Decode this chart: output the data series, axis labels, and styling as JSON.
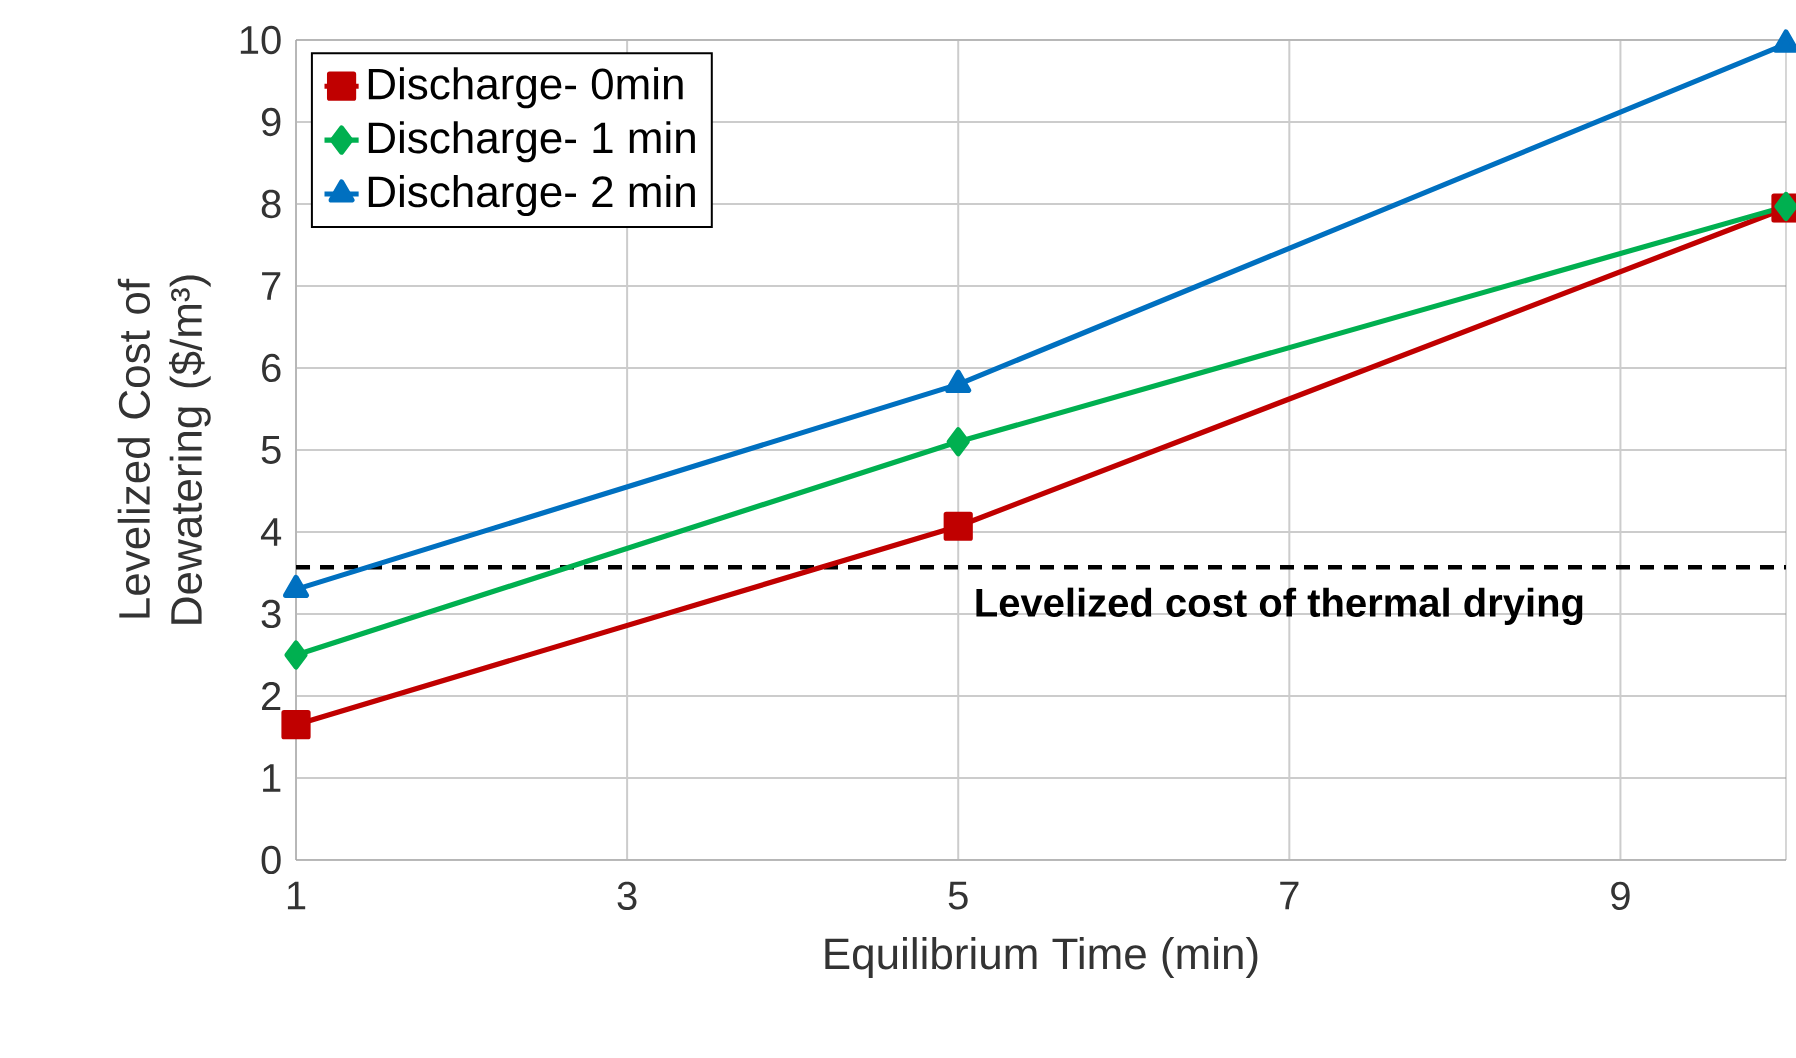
{
  "chart_data": {
    "type": "line",
    "xlabel": "Equilibrium Time (min)",
    "ylabel": "Levelized Cost of Dewatering ($/m³)",
    "x": [
      1,
      5,
      10
    ],
    "series": [
      {
        "name": "Discharge- 0min",
        "color": "#c00000",
        "marker": "square",
        "values": [
          1.65,
          4.07,
          7.95
        ]
      },
      {
        "name": "Discharge- 1 min",
        "color": "#00b050",
        "marker": "diamond",
        "values": [
          2.5,
          5.1,
          7.97
        ]
      },
      {
        "name": "Discharge- 2 min",
        "color": "#0070c0",
        "marker": "triangle",
        "values": [
          3.3,
          5.8,
          9.95
        ]
      }
    ],
    "xlim": [
      1,
      10
    ],
    "xticks": [
      1,
      3,
      5,
      7,
      9
    ],
    "ylim": [
      0,
      10
    ],
    "yticks": [
      0,
      1,
      2,
      3,
      4,
      5,
      6,
      7,
      8,
      9,
      10
    ],
    "grid": true,
    "legend": "top left",
    "line_style": "solid",
    "ref_lines": [
      {
        "axis": "y",
        "value": 3.57,
        "label": "Levelized cost of thermal drying",
        "color": "#000000",
        "line_style": "dashed"
      }
    ]
  }
}
